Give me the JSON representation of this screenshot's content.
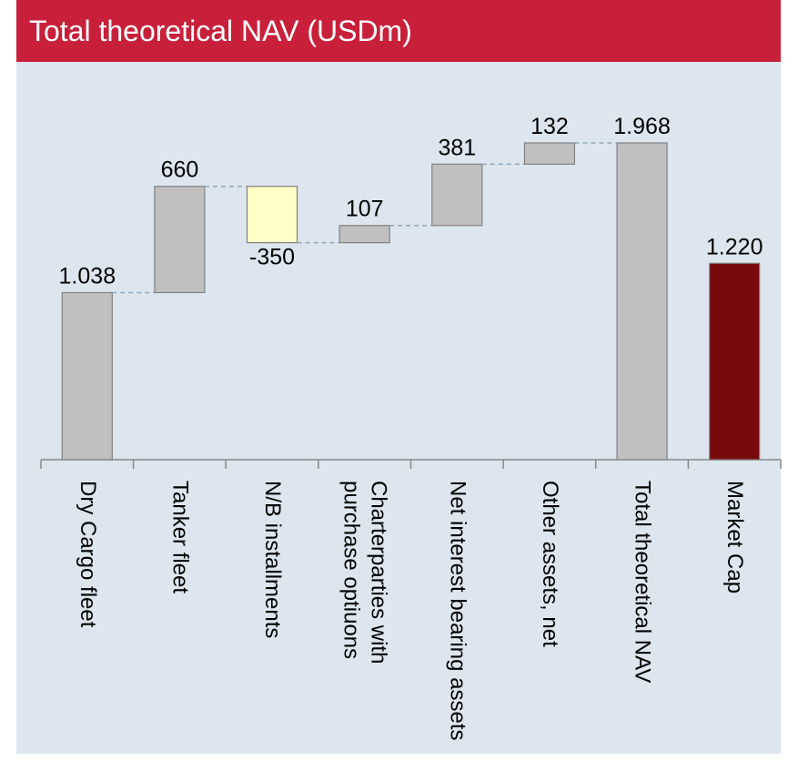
{
  "chart_data": {
    "type": "waterfall",
    "title": "Total theoretical NAV (USDm)",
    "categories": [
      "Dry Cargo fleet",
      "Tanker fleet",
      "N/B installments",
      "Charterparties with purchase optiuons",
      "Net interest bearing assets",
      "Other assets, net",
      "Total theoretical NAV",
      "Market Cap"
    ],
    "values": [
      1038,
      660,
      -350,
      107,
      381,
      132,
      1968,
      1220
    ],
    "value_labels": [
      "1.038",
      "660",
      "-350",
      "107",
      "381",
      "132",
      "1.968",
      "1.220"
    ],
    "colors": [
      "#c0c0c0",
      "#c0c0c0",
      "#ffffc8",
      "#c0c0c0",
      "#c0c0c0",
      "#c0c0c0",
      "#c0c0c0",
      "#780a0e"
    ],
    "totals": [
      6,
      7
    ]
  }
}
